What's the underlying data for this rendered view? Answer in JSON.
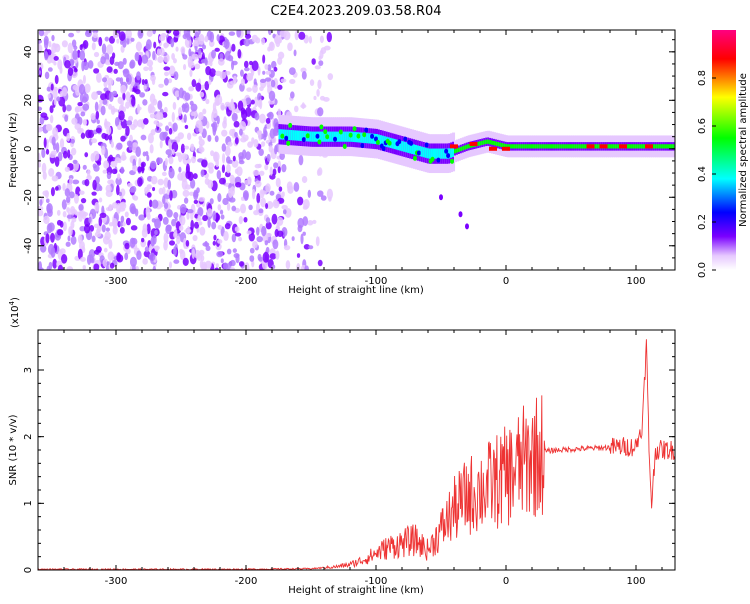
{
  "chart_data": [
    {
      "type": "heatmap",
      "title": "C2E4.2023.209.03.58.R04",
      "xlabel": "Height of straight line (km)",
      "ylabel": "Frequency (Hz)",
      "xlim": [
        -360,
        130
      ],
      "ylim": [
        -50,
        49
      ],
      "xticks": [
        -300,
        -200,
        -100,
        0,
        100
      ],
      "yticks": [
        -40,
        -20,
        0,
        20,
        40
      ],
      "colorbar": {
        "label": "Normalized spectral amplitude",
        "range": [
          0,
          1
        ],
        "ticks": [
          "0.0",
          "0.2",
          "0.4",
          "0.6",
          "0.8"
        ],
        "colormap": [
          "#ffffff",
          "#e6c8ff",
          "#7a00ff",
          "#0000ff",
          "#00ffff",
          "#00ff00",
          "#ffff00",
          "#ff0000",
          "#ff0080"
        ]
      },
      "features": {
        "noise_region": [
          -360,
          -170
        ],
        "main_trace": [
          [
            -175,
            6
          ],
          [
            -150,
            5
          ],
          [
            -120,
            5
          ],
          [
            -100,
            4
          ],
          [
            -80,
            1
          ],
          [
            -60,
            -2
          ],
          [
            -45,
            -2
          ],
          [
            -30,
            1
          ],
          [
            -15,
            3
          ],
          [
            0,
            1
          ],
          [
            40,
            1
          ],
          [
            80,
            1
          ],
          [
            130,
            1
          ]
        ],
        "secondary_branch": [
          [
            -50,
            -20
          ],
          [
            -35,
            -27
          ],
          [
            -30,
            -32
          ]
        ],
        "strong_bins": [
          [
            -40,
            1
          ],
          [
            -25,
            2
          ],
          [
            -10,
            0
          ],
          [
            0,
            0
          ],
          [
            65,
            1
          ],
          [
            75,
            1
          ],
          [
            90,
            1
          ],
          [
            110,
            1
          ]
        ]
      }
    },
    {
      "type": "line",
      "xlabel": "Height of straight line (km)",
      "ylabel": "SNR (10 * v/v)",
      "y_scale": "(x10",
      "y_scale_exp": "4",
      "y_scale_close": ")",
      "xlim": [
        -360,
        130
      ],
      "ylim": [
        0,
        3.6
      ],
      "xticks": [
        -300,
        -200,
        -100,
        0,
        100
      ],
      "yticks": [
        0,
        1,
        2,
        3
      ],
      "color": "#ee3333",
      "series": [
        {
          "x": [
            -360,
            -300,
            -250,
            -200,
            -150,
            -130,
            -120,
            -110,
            -100,
            -90,
            -80,
            -70,
            -60,
            -50,
            -40,
            -30,
            -20,
            -10,
            0,
            10,
            20,
            30,
            40,
            60,
            80,
            90,
            100,
            105,
            108,
            110,
            112,
            115,
            120,
            130
          ],
          "y": [
            0.01,
            0.01,
            0.01,
            0.01,
            0.02,
            0.05,
            0.08,
            0.15,
            0.25,
            0.35,
            0.4,
            0.45,
            0.3,
            0.6,
            0.9,
            1.1,
            1.2,
            1.3,
            1.4,
            1.55,
            1.7,
            1.78,
            1.8,
            1.82,
            1.84,
            1.85,
            1.85,
            2.2,
            3.4,
            1.8,
            1.0,
            1.8,
            1.8,
            1.8
          ]
        }
      ]
    }
  ]
}
